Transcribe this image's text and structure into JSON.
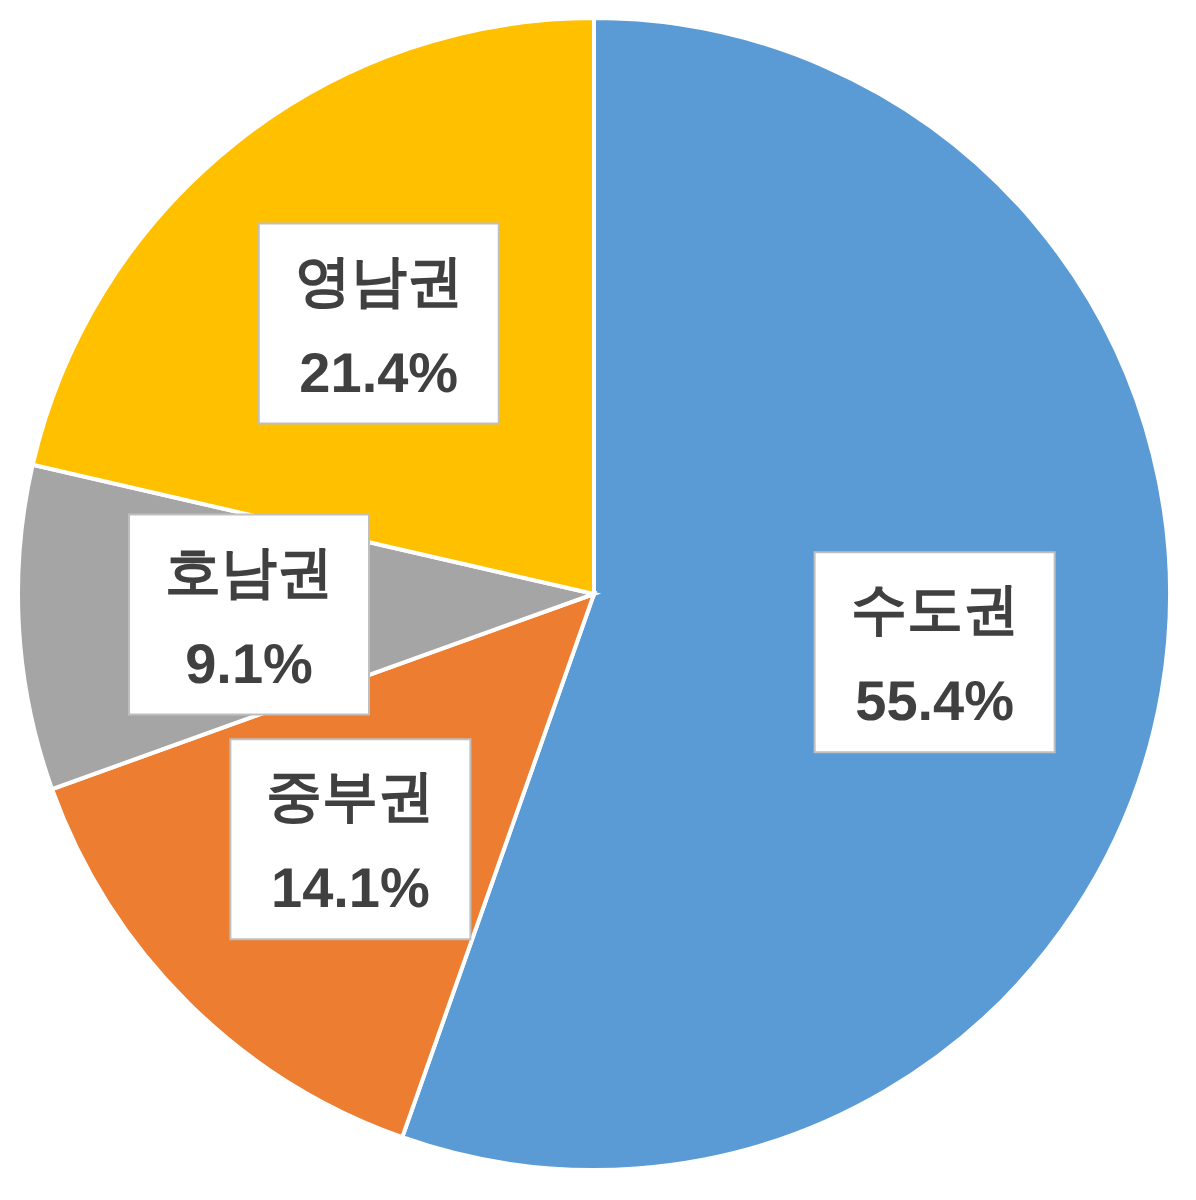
{
  "chart_data": {
    "type": "pie",
    "categories": [
      "수도권",
      "중부권",
      "호남권",
      "영남권"
    ],
    "values": [
      55.4,
      14.1,
      9.1,
      21.4
    ],
    "colors": [
      "#5b9bd5",
      "#ed7d31",
      "#a5a5a5",
      "#ffc000"
    ],
    "value_labels": [
      "55.4%",
      "14.1%",
      "9.1%",
      "21.4%"
    ],
    "legend": false
  }
}
